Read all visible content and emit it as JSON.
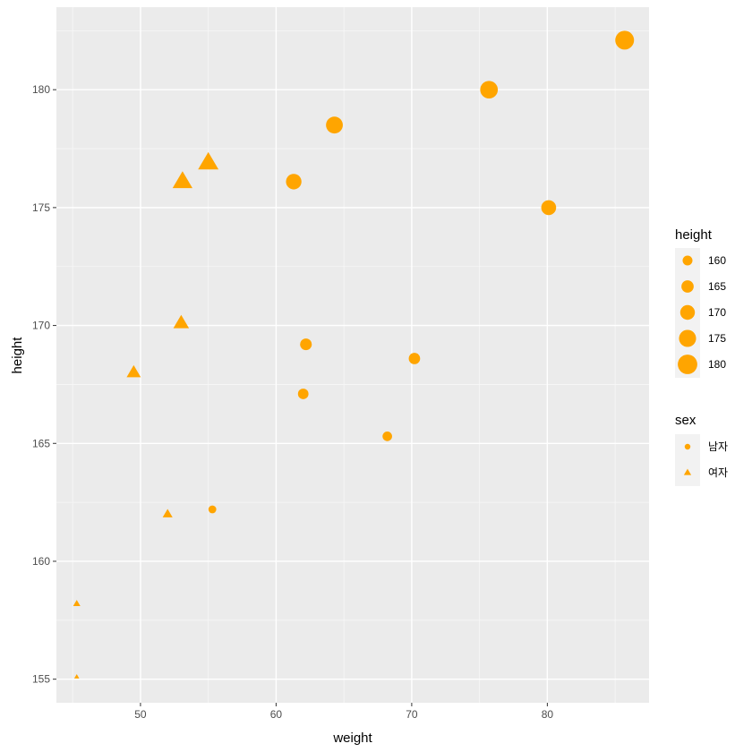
{
  "chart_data": {
    "type": "scatter",
    "xlabel": "weight",
    "ylabel": "height",
    "xlim": [
      43.8,
      87.5
    ],
    "ylim": [
      154.0,
      183.5
    ],
    "x_ticks": [
      50,
      60,
      70,
      80
    ],
    "y_ticks": [
      155,
      160,
      165,
      170,
      175,
      180
    ],
    "grid": true,
    "point_color": "#FFA500",
    "panel_background": "#EBEBEB",
    "series": [
      {
        "name": "남자",
        "shape": "circle",
        "points": [
          {
            "x": 55.3,
            "y": 162.2
          },
          {
            "x": 62.0,
            "y": 167.1
          },
          {
            "x": 68.2,
            "y": 165.3
          },
          {
            "x": 62.2,
            "y": 169.2
          },
          {
            "x": 70.2,
            "y": 168.6
          },
          {
            "x": 80.1,
            "y": 175.0
          },
          {
            "x": 61.3,
            "y": 176.1
          },
          {
            "x": 64.3,
            "y": 178.5
          },
          {
            "x": 75.7,
            "y": 180.0
          },
          {
            "x": 85.7,
            "y": 182.1
          }
        ]
      },
      {
        "name": "여자",
        "shape": "triangle",
        "points": [
          {
            "x": 45.3,
            "y": 155.1
          },
          {
            "x": 45.3,
            "y": 158.2
          },
          {
            "x": 52.0,
            "y": 162.0
          },
          {
            "x": 49.5,
            "y": 168.0
          },
          {
            "x": 53.0,
            "y": 170.1
          },
          {
            "x": 53.1,
            "y": 176.1
          },
          {
            "x": 55.0,
            "y": 176.9
          }
        ]
      }
    ],
    "legends": [
      {
        "title": "height",
        "placement": "right",
        "entries": [
          {
            "label": "160",
            "value": 160
          },
          {
            "label": "165",
            "value": 165
          },
          {
            "label": "170",
            "value": 170
          },
          {
            "label": "175",
            "value": 175
          },
          {
            "label": "180",
            "value": 180
          }
        ]
      },
      {
        "title": "sex",
        "placement": "right",
        "entries": [
          {
            "label": "남자",
            "shape": "circle"
          },
          {
            "label": "여자",
            "shape": "triangle"
          }
        ]
      }
    ]
  }
}
